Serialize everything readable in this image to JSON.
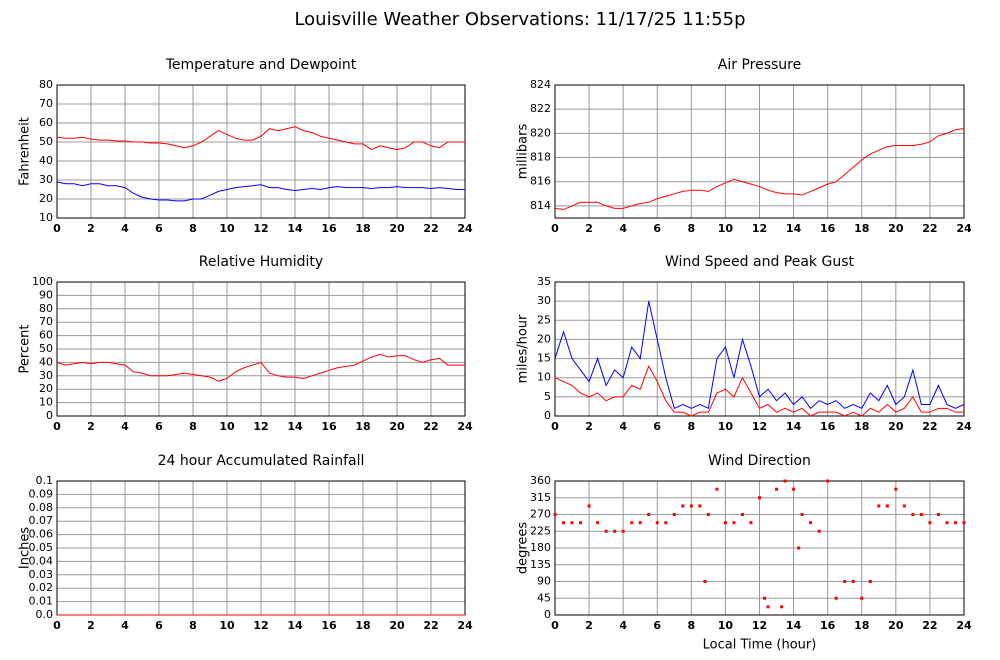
{
  "title": "Louisville Weather Observations: 11/17/25 11:55p",
  "chart_data": [
    {
      "type": "line",
      "title": "Temperature and Dewpoint",
      "ylabel": "Fahrenheit",
      "grid": true,
      "xlim": [
        0,
        24
      ],
      "xticks": [
        0,
        2,
        4,
        6,
        8,
        10,
        12,
        14,
        16,
        18,
        20,
        22,
        24
      ],
      "ylim": [
        10,
        80
      ],
      "yticks": [
        10,
        20,
        30,
        40,
        50,
        60,
        70,
        80
      ],
      "x": [
        0,
        0.5,
        1,
        1.5,
        2,
        2.5,
        3,
        3.5,
        4,
        4.5,
        5,
        5.5,
        6,
        6.5,
        7,
        7.5,
        8,
        8.5,
        9,
        9.5,
        10,
        10.5,
        11,
        11.5,
        12,
        12.5,
        13,
        13.5,
        14,
        14.5,
        15,
        15.5,
        16,
        16.5,
        17,
        17.5,
        18,
        18.5,
        19,
        19.5,
        20,
        20.5,
        21,
        21.5,
        22,
        22.5,
        23,
        23.5,
        24
      ],
      "series": [
        {
          "color": "#ff0000",
          "values": [
            52.5,
            52,
            52,
            52.5,
            51.5,
            51,
            51,
            50.5,
            50.5,
            50,
            50,
            49.5,
            49.5,
            49,
            48,
            47,
            48,
            50,
            53,
            56,
            54,
            52,
            51,
            51,
            53,
            57,
            56,
            57,
            58,
            56,
            55,
            53,
            52,
            51,
            50,
            49,
            49,
            46,
            48,
            47,
            46,
            47,
            50,
            50,
            48,
            47,
            50,
            50,
            50
          ]
        },
        {
          "color": "#0000ff",
          "values": [
            29,
            28,
            28,
            27,
            28,
            28,
            27,
            27,
            26,
            23,
            21,
            20,
            19.5,
            19.5,
            19,
            19,
            20,
            20,
            22,
            24,
            25,
            26,
            26.5,
            27,
            27.5,
            26,
            26,
            25,
            24.5,
            25,
            25.5,
            25,
            26,
            26.5,
            26,
            26,
            26,
            25.5,
            26,
            26,
            26.5,
            26,
            26,
            26,
            25.5,
            26,
            25.5,
            25,
            25
          ]
        }
      ]
    },
    {
      "type": "line",
      "title": "Air Pressure",
      "ylabel": "millibars",
      "grid": true,
      "xlim": [
        0,
        24
      ],
      "xticks": [
        0,
        2,
        4,
        6,
        8,
        10,
        12,
        14,
        16,
        18,
        20,
        22,
        24
      ],
      "ylim": [
        813,
        824
      ],
      "yticks": [
        814,
        816,
        818,
        820,
        822,
        824
      ],
      "x": [
        0,
        0.5,
        1,
        1.5,
        2,
        2.5,
        3,
        3.5,
        4,
        4.5,
        5,
        5.5,
        6,
        6.5,
        7,
        7.5,
        8,
        8.5,
        9,
        9.5,
        10,
        10.5,
        11,
        11.5,
        12,
        12.5,
        13,
        13.5,
        14,
        14.5,
        15,
        15.5,
        16,
        16.5,
        17,
        17.5,
        18,
        18.5,
        19,
        19.5,
        20,
        20.5,
        21,
        21.5,
        22,
        22.5,
        23,
        23.5,
        24
      ],
      "series": [
        {
          "color": "#ff0000",
          "values": [
            813.8,
            813.7,
            814.0,
            814.3,
            814.3,
            814.3,
            814.0,
            813.8,
            813.8,
            814.0,
            814.2,
            814.3,
            814.6,
            814.8,
            815.0,
            815.2,
            815.3,
            815.3,
            815.2,
            815.6,
            815.9,
            816.2,
            816.0,
            815.8,
            815.6,
            815.3,
            815.1,
            815.0,
            815.0,
            814.9,
            815.2,
            815.5,
            815.8,
            816.0,
            816.6,
            817.2,
            817.8,
            818.3,
            818.6,
            818.9,
            819.0,
            819.0,
            819.0,
            819.1,
            819.3,
            819.8,
            820.0,
            820.3,
            820.4
          ]
        }
      ]
    },
    {
      "type": "line",
      "title": "Relative Humidity",
      "ylabel": "Percent",
      "grid": true,
      "xlim": [
        0,
        24
      ],
      "xticks": [
        0,
        2,
        4,
        6,
        8,
        10,
        12,
        14,
        16,
        18,
        20,
        22,
        24
      ],
      "ylim": [
        0,
        100
      ],
      "yticks": [
        0,
        10,
        20,
        30,
        40,
        50,
        60,
        70,
        80,
        90,
        100
      ],
      "x": [
        0,
        0.5,
        1,
        1.5,
        2,
        2.5,
        3,
        3.5,
        4,
        4.5,
        5,
        5.5,
        6,
        6.5,
        7,
        7.5,
        8,
        8.5,
        9,
        9.5,
        10,
        10.5,
        11,
        11.5,
        12,
        12.5,
        13,
        13.5,
        14,
        14.5,
        15,
        15.5,
        16,
        16.5,
        17,
        17.5,
        18,
        18.5,
        19,
        19.5,
        20,
        20.5,
        21,
        21.5,
        22,
        22.5,
        23,
        23.5,
        24
      ],
      "series": [
        {
          "color": "#ff0000",
          "values": [
            40,
            38,
            39,
            40,
            39,
            40,
            40,
            39,
            38,
            33,
            32,
            30,
            30,
            30,
            31,
            32,
            31,
            30,
            29,
            26,
            28,
            33,
            36,
            38,
            40,
            32,
            30,
            29,
            29,
            28,
            30,
            32,
            34,
            36,
            37,
            38,
            41,
            44,
            46,
            44,
            45,
            45,
            42,
            40,
            42,
            43,
            38,
            38,
            38
          ]
        }
      ]
    },
    {
      "type": "line",
      "title": "Wind Speed and Peak Gust",
      "ylabel": "miles/hour",
      "grid": true,
      "xlim": [
        0,
        24
      ],
      "xticks": [
        0,
        2,
        4,
        6,
        8,
        10,
        12,
        14,
        16,
        18,
        20,
        22,
        24
      ],
      "ylim": [
        0,
        35
      ],
      "yticks": [
        0,
        5,
        10,
        15,
        20,
        25,
        30,
        35
      ],
      "x": [
        0,
        0.5,
        1,
        1.5,
        2,
        2.5,
        3,
        3.5,
        4,
        4.5,
        5,
        5.5,
        6,
        6.5,
        7,
        7.5,
        8,
        8.5,
        9,
        9.5,
        10,
        10.5,
        11,
        11.5,
        12,
        12.5,
        13,
        13.5,
        14,
        14.5,
        15,
        15.5,
        16,
        16.5,
        17,
        17.5,
        18,
        18.5,
        19,
        19.5,
        20,
        20.5,
        21,
        21.5,
        22,
        22.5,
        23,
        23.5,
        24
      ],
      "series": [
        {
          "color": "#0000ff",
          "values": [
            15,
            22,
            15,
            12,
            9,
            15,
            8,
            12,
            10,
            18,
            15,
            30,
            20,
            10,
            2,
            3,
            2,
            3,
            2,
            15,
            18,
            10,
            20,
            13,
            5,
            7,
            4,
            6,
            3,
            5,
            2,
            4,
            3,
            4,
            2,
            3,
            2,
            6,
            4,
            8,
            3,
            5,
            12,
            3,
            3,
            8,
            3,
            2,
            3
          ]
        },
        {
          "color": "#ff0000",
          "values": [
            10,
            9,
            8,
            6,
            5,
            6,
            4,
            5,
            5,
            8,
            7,
            13,
            9,
            4,
            1,
            1,
            0,
            1,
            1,
            6,
            7,
            5,
            10,
            6,
            2,
            3,
            1,
            2,
            1,
            2,
            0,
            1,
            1,
            1,
            0,
            1,
            0,
            2,
            1,
            3,
            1,
            2,
            5,
            1,
            1,
            2,
            2,
            1,
            1
          ]
        }
      ]
    },
    {
      "type": "line",
      "title": "24 hour Accumulated Rainfall",
      "ylabel": "Inches",
      "grid": true,
      "xlim": [
        0,
        24
      ],
      "xticks": [
        0,
        2,
        4,
        6,
        8,
        10,
        12,
        14,
        16,
        18,
        20,
        22,
        24
      ],
      "ylim": [
        0,
        0.1
      ],
      "yticks": [
        {
          "value": 0,
          "label": "0.0"
        },
        0.01,
        0.02,
        0.03,
        0.04,
        0.05,
        0.06,
        0.07,
        0.08,
        0.09,
        0.1
      ],
      "x": [
        0,
        24
      ],
      "series": [
        {
          "color": "#ff0000",
          "values": [
            0,
            0
          ]
        }
      ]
    },
    {
      "type": "scatter",
      "title": "Wind Direction",
      "ylabel": "degrees",
      "xlabel": "Local Time (hour)",
      "grid": true,
      "xlim": [
        0,
        24
      ],
      "xticks": [
        0,
        2,
        4,
        6,
        8,
        10,
        12,
        14,
        16,
        18,
        20,
        22,
        24
      ],
      "ylim": [
        0,
        360
      ],
      "yticks": [
        0,
        45,
        90,
        135,
        180,
        225,
        270,
        315,
        360
      ],
      "x": [
        0,
        0.5,
        1,
        1.5,
        2,
        2.5,
        3,
        3.5,
        4,
        4.5,
        5,
        5.5,
        6,
        6.5,
        7,
        7.5,
        8,
        8.5,
        8.8,
        9,
        9.5,
        10,
        10.5,
        11,
        11.5,
        12,
        12.3,
        12.5,
        13,
        13.3,
        13.5,
        14,
        14.3,
        14.5,
        15,
        15.5,
        16,
        16.5,
        17,
        17.5,
        18,
        18.5,
        19,
        19.5,
        20,
        20.5,
        21,
        21.5,
        22,
        22.5,
        23,
        23.5,
        24
      ],
      "series": [
        {
          "color": "#ff0000",
          "values": [
            270,
            248,
            248,
            248,
            293,
            248,
            225,
            225,
            225,
            248,
            248,
            270,
            248,
            248,
            270,
            293,
            293,
            293,
            90,
            270,
            338,
            248,
            248,
            270,
            248,
            315,
            45,
            22,
            338,
            22,
            360,
            338,
            180,
            270,
            248,
            225,
            360,
            45,
            90,
            90,
            45,
            90,
            293,
            293,
            338,
            293,
            270,
            270,
            248,
            270,
            248,
            248,
            248
          ]
        }
      ]
    }
  ]
}
